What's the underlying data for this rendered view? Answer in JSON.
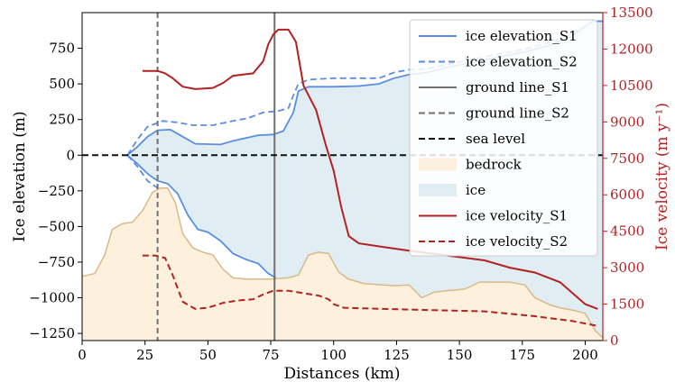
{
  "chart_data": {
    "type": "line",
    "xlabel": "Distances (km)",
    "ylabel_left": "Ice elevation (m)",
    "ylabel_right": "Ice velocity (m y⁻¹)",
    "xlim": [
      0,
      207
    ],
    "ylim_left": [
      -1300,
      1000
    ],
    "ylim_right": [
      0,
      13500
    ],
    "x_ticks": [
      0,
      25,
      50,
      75,
      100,
      125,
      150,
      175,
      200
    ],
    "y_ticks_left": [
      -1250,
      -1000,
      -750,
      -500,
      -250,
      0,
      250,
      500,
      750
    ],
    "y_ticks_right": [
      0,
      1500,
      3000,
      4500,
      6000,
      7500,
      9000,
      10500,
      12000,
      13500
    ],
    "legend_position": "top-right",
    "colors": {
      "ice_line": "#5b8ee0",
      "ground_line": "#707070",
      "sea_level": "#111111",
      "bedrock_fill": "#fdf0dc",
      "bedrock_edge": "#d9b98a",
      "ice_fill": "#e0eef4",
      "velocity": "#b22222",
      "right_axis": "#b22222"
    },
    "series": [
      {
        "name": "ice elevation_S1",
        "style": "solid",
        "axis": "left",
        "upper": [
          [
            18,
            0
          ],
          [
            22,
            60
          ],
          [
            26,
            130
          ],
          [
            30,
            175
          ],
          [
            35,
            180
          ],
          [
            40,
            130
          ],
          [
            45,
            80
          ],
          [
            55,
            75
          ],
          [
            60,
            100
          ],
          [
            65,
            120
          ],
          [
            70,
            140
          ],
          [
            76,
            145
          ],
          [
            80,
            170
          ],
          [
            84,
            300
          ],
          [
            86,
            450
          ],
          [
            90,
            480
          ],
          [
            100,
            480
          ],
          [
            110,
            485
          ],
          [
            118,
            500
          ],
          [
            124,
            540
          ],
          [
            130,
            565
          ],
          [
            137,
            580
          ],
          [
            146,
            620
          ],
          [
            156,
            655
          ],
          [
            166,
            690
          ],
          [
            176,
            725
          ],
          [
            186,
            770
          ],
          [
            194,
            830
          ],
          [
            200,
            900
          ],
          [
            203,
            940
          ],
          [
            207,
            940
          ]
        ],
        "lower": [
          [
            18,
            0
          ],
          [
            22,
            -60
          ],
          [
            26,
            -130
          ],
          [
            30,
            -180
          ],
          [
            34,
            -200
          ],
          [
            38,
            -270
          ],
          [
            42,
            -420
          ],
          [
            46,
            -520
          ],
          [
            50,
            -540
          ],
          [
            55,
            -600
          ],
          [
            60,
            -690
          ],
          [
            65,
            -730
          ],
          [
            70,
            -760
          ],
          [
            74,
            -830
          ],
          [
            77,
            -860
          ]
        ]
      },
      {
        "name": "ice elevation_S2",
        "style": "dashed",
        "axis": "left",
        "upper": [
          [
            18,
            0
          ],
          [
            22,
            110
          ],
          [
            26,
            200
          ],
          [
            32,
            240
          ],
          [
            38,
            230
          ],
          [
            44,
            210
          ],
          [
            52,
            210
          ],
          [
            60,
            240
          ],
          [
            66,
            260
          ],
          [
            72,
            300
          ],
          [
            78,
            310
          ],
          [
            82,
            330
          ],
          [
            84,
            420
          ],
          [
            86,
            500
          ],
          [
            90,
            530
          ],
          [
            100,
            540
          ],
          [
            110,
            540
          ],
          [
            118,
            540
          ],
          [
            124,
            580
          ],
          [
            130,
            600
          ],
          [
            137,
            605
          ],
          [
            146,
            640
          ],
          [
            156,
            675
          ],
          [
            166,
            710
          ],
          [
            176,
            745
          ],
          [
            186,
            790
          ],
          [
            194,
            845
          ],
          [
            200,
            905
          ],
          [
            203,
            940
          ],
          [
            207,
            940
          ]
        ],
        "lower": [
          [
            18,
            0
          ],
          [
            22,
            -80
          ],
          [
            26,
            -180
          ],
          [
            30,
            -230
          ]
        ]
      },
      {
        "name": "ground line_S1",
        "style": "vline-solid",
        "x": 76.5
      },
      {
        "name": "ground line_S2",
        "style": "vline-dashed",
        "x": 30
      },
      {
        "name": "sea level",
        "style": "hline-dashed",
        "y": 0
      },
      {
        "name": "bedrock",
        "style": "fill",
        "axis": "left",
        "top": [
          [
            0,
            -850
          ],
          [
            5,
            -830
          ],
          [
            9,
            -700
          ],
          [
            12,
            -520
          ],
          [
            16,
            -480
          ],
          [
            20,
            -470
          ],
          [
            24,
            -390
          ],
          [
            28,
            -260
          ],
          [
            31,
            -230
          ],
          [
            34,
            -230
          ],
          [
            37,
            -330
          ],
          [
            40,
            -550
          ],
          [
            44,
            -650
          ],
          [
            48,
            -680
          ],
          [
            52,
            -700
          ],
          [
            56,
            -800
          ],
          [
            60,
            -860
          ],
          [
            66,
            -870
          ],
          [
            74,
            -870
          ],
          [
            82,
            -860
          ],
          [
            86,
            -840
          ],
          [
            90,
            -700
          ],
          [
            94,
            -680
          ],
          [
            98,
            -690
          ],
          [
            102,
            -820
          ],
          [
            106,
            -870
          ],
          [
            112,
            -900
          ],
          [
            124,
            -915
          ],
          [
            130,
            -910
          ],
          [
            135,
            -1000
          ],
          [
            140,
            -960
          ],
          [
            145,
            -950
          ],
          [
            152,
            -940
          ],
          [
            158,
            -890
          ],
          [
            170,
            -890
          ],
          [
            176,
            -910
          ],
          [
            180,
            -1000
          ],
          [
            186,
            -1050
          ],
          [
            190,
            -1070
          ],
          [
            196,
            -1090
          ],
          [
            200,
            -1110
          ],
          [
            204,
            -1230
          ],
          [
            207,
            -1280
          ]
        ]
      },
      {
        "name": "ice",
        "style": "fill",
        "axis": "left"
      },
      {
        "name": "ice velocity_S1",
        "style": "solid",
        "axis": "right",
        "points": [
          [
            24,
            11100
          ],
          [
            30,
            11100
          ],
          [
            33,
            11000
          ],
          [
            36,
            10800
          ],
          [
            40,
            10450
          ],
          [
            45,
            10350
          ],
          [
            52,
            10400
          ],
          [
            56,
            10600
          ],
          [
            60,
            10900
          ],
          [
            68,
            11000
          ],
          [
            72,
            11500
          ],
          [
            74,
            12200
          ],
          [
            76,
            12600
          ],
          [
            78,
            12800
          ],
          [
            82,
            12800
          ],
          [
            85,
            12300
          ],
          [
            88,
            10500
          ],
          [
            93,
            9500
          ],
          [
            97,
            8000
          ],
          [
            100,
            7000
          ],
          [
            103,
            5500
          ],
          [
            106,
            4300
          ],
          [
            110,
            4000
          ],
          [
            120,
            3850
          ],
          [
            130,
            3700
          ],
          [
            145,
            3500
          ],
          [
            160,
            3300
          ],
          [
            170,
            3000
          ],
          [
            180,
            2800
          ],
          [
            190,
            2400
          ],
          [
            200,
            1500
          ],
          [
            205,
            1300
          ]
        ]
      },
      {
        "name": "ice velocity_S2",
        "style": "dashed",
        "axis": "right",
        "points": [
          [
            24,
            3500
          ],
          [
            29,
            3500
          ],
          [
            33,
            3400
          ],
          [
            36,
            2700
          ],
          [
            40,
            1600
          ],
          [
            45,
            1300
          ],
          [
            50,
            1350
          ],
          [
            56,
            1550
          ],
          [
            62,
            1650
          ],
          [
            68,
            1700
          ],
          [
            72,
            1900
          ],
          [
            76,
            2050
          ],
          [
            82,
            2050
          ],
          [
            88,
            1950
          ],
          [
            94,
            1850
          ],
          [
            98,
            1700
          ],
          [
            100,
            1500
          ],
          [
            104,
            1350
          ],
          [
            120,
            1300
          ],
          [
            140,
            1250
          ],
          [
            160,
            1200
          ],
          [
            180,
            1000
          ],
          [
            195,
            800
          ],
          [
            205,
            600
          ]
        ]
      }
    ]
  }
}
